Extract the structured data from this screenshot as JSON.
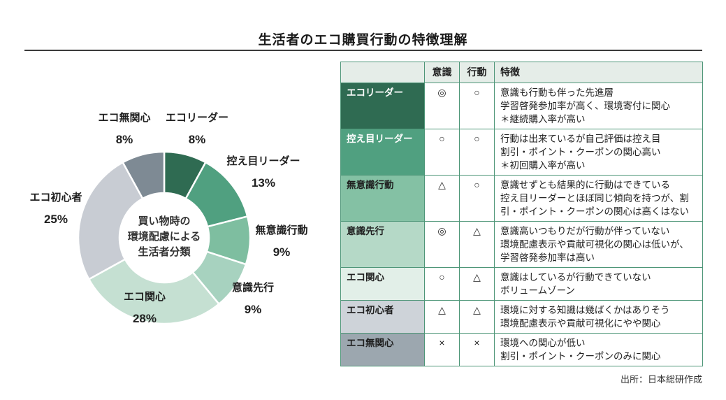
{
  "page": {
    "title": "生活者のエコ購買行動の特徴理解",
    "source_note": "出所：日本総研作成"
  },
  "chart_data": {
    "type": "pie",
    "variant": "donut",
    "title": "買い物時の環境配慮による生活者分類",
    "center_label_lines": [
      "買い物時の",
      "環境配慮による",
      "生活者分類"
    ],
    "unit": "%",
    "start_angle_deg": 0,
    "direction": "clockwise",
    "segments": [
      {
        "label": "エコリーダー",
        "value": 8,
        "pct_label": "8%",
        "color": "#2F6B52"
      },
      {
        "label": "控え目リーダー",
        "value": 13,
        "pct_label": "13%",
        "color": "#50A080"
      },
      {
        "label": "無意識行動",
        "value": 9,
        "pct_label": "9%",
        "color": "#7EBEA0"
      },
      {
        "label": "意識先行",
        "value": 9,
        "pct_label": "9%",
        "color": "#A7D2BF"
      },
      {
        "label": "エコ関心",
        "value": 28,
        "pct_label": "28%",
        "color": "#C5E0D2"
      },
      {
        "label": "エコ初心者",
        "value": 25,
        "pct_label": "25%",
        "color": "#C8CCD3"
      },
      {
        "label": "エコ無関心",
        "value": 8,
        "pct_label": "8%",
        "color": "#7E8A94"
      }
    ]
  },
  "table": {
    "border_color": "#4E9678",
    "header_bg": "#E5EDE8",
    "headers": [
      "",
      "意識",
      "行動",
      "特徴"
    ],
    "rows": [
      {
        "label": "エコリーダー",
        "awareness": "◎",
        "behavior": "○",
        "desc": "意識も行動も伴った先進層\n学習啓発参加率が高く、環境寄付に関心\n＊継続購入率が高い",
        "color": "#2F6B52",
        "text_color": "#FFFFFF"
      },
      {
        "label": "控え目リーダー",
        "awareness": "○",
        "behavior": "○",
        "desc": "行動は出来ているが自己評価は控え目\n割引・ポイント・クーポンの関心高い\n＊初回購入率が高い",
        "color": "#50A080",
        "text_color": "#FFFFFF"
      },
      {
        "label": "無意識行動",
        "awareness": "△",
        "behavior": "○",
        "desc": "意識せずとも結果的に行動はできている\n控え目リーダーとほぼ同じ傾向を持つが、割引・ポイント・クーポンの関心は高くはない",
        "color": "#84C1A4",
        "text_color": "#1f1f1f"
      },
      {
        "label": "意識先行",
        "awareness": "◎",
        "behavior": "△",
        "desc": "意識高いつもりだが行動が伴っていない\n環境配慮表示や貢献可視化の関心は低いが、学習啓発参加率は高い",
        "color": "#B5D9C7",
        "text_color": "#1f1f1f"
      },
      {
        "label": "エコ関心",
        "awareness": "○",
        "behavior": "△",
        "desc": "意識はしているが行動できていない\nボリュームゾーン",
        "color": "#E2EFE8",
        "text_color": "#1f1f1f"
      },
      {
        "label": "エコ初心者",
        "awareness": "△",
        "behavior": "△",
        "desc": "環境に対する知識は幾ばくかはありそう\n環境配慮表示や貢献可視化にやや関心",
        "color": "#CED3D9",
        "text_color": "#1f1f1f"
      },
      {
        "label": "エコ無関心",
        "awareness": "×",
        "behavior": "×",
        "desc": "環境への関心が低い\n割引・ポイント・クーポンのみに関心",
        "color": "#9CA7AF",
        "text_color": "#1f1f1f"
      }
    ]
  }
}
